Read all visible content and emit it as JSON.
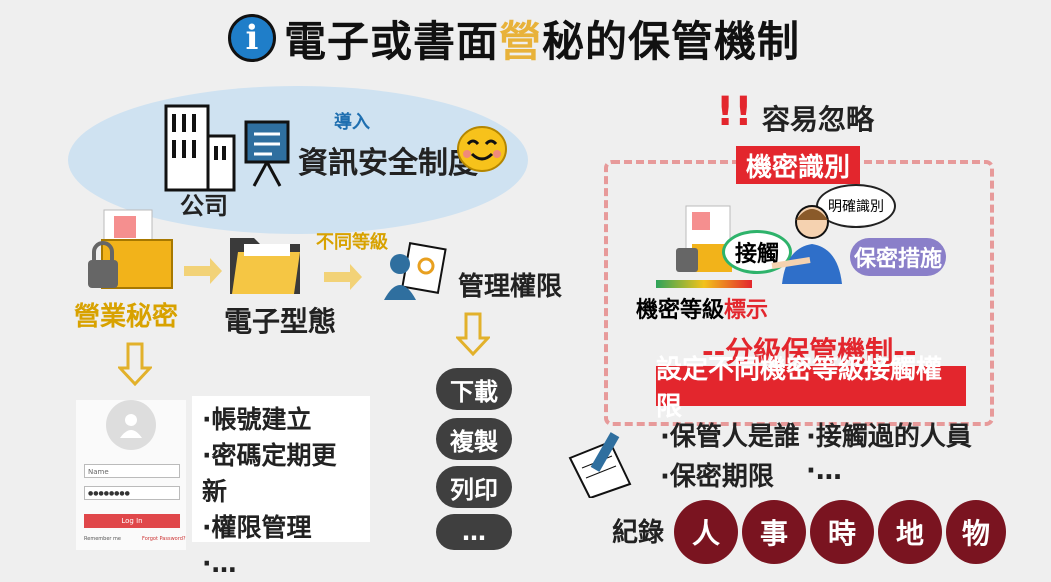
{
  "title": {
    "prefix": "電子或書面",
    "highlight": "營",
    "suffix": "秘的保管機制",
    "icon": "info-icon"
  },
  "company": {
    "label": "公司",
    "import_label": "導入",
    "policy": "資訊安全制度"
  },
  "flow": {
    "trade_secret": "營業秘密",
    "electronic": "電子型態",
    "diff_level": "不同等級",
    "access_rights": "管理權限",
    "actions": [
      "下載",
      "複製",
      "列印",
      "…"
    ]
  },
  "login": {
    "name_placeholder": "Name",
    "password_value": "●●●●●●●●",
    "login_button": "Log In",
    "remember": "Remember me",
    "forgot": "Forgot Password?"
  },
  "account_list": [
    "·帳號建立",
    "·密碼定期更新",
    "·權限管理",
    "·…"
  ],
  "right": {
    "warning": "容易忽略",
    "identify": "機密識別",
    "clear_identify": "明確識別",
    "contact": "接觸",
    "protection": "保密措施",
    "level_mark_a": "機密等級",
    "level_mark_b": "標示",
    "tiered_title": "--分級保管機制--",
    "set_rights": "設定不同機密等級接觸權限",
    "items": [
      "·保管人是誰",
      "·接觸過的人員",
      "·保密期限",
      "·…"
    ]
  },
  "record": {
    "label": "紀錄",
    "items": [
      "人",
      "事",
      "時",
      "地",
      "物"
    ]
  },
  "colors": {
    "accent_yellow": "#e8b23a",
    "red": "#e3262d",
    "bubble": "#7a1420",
    "cloud": "#cfe2f1",
    "info_blue": "#1f7ec9"
  }
}
